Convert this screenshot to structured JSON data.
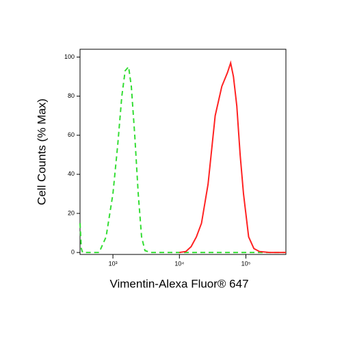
{
  "chart_data": {
    "type": "line",
    "x_label": "Vimentin-Alexa Fluor® 647",
    "y_label": "Cell Counts (% Max)",
    "x_scale": "log",
    "xlim": [
      320,
      400000
    ],
    "ylim": [
      -1,
      104
    ],
    "xticks": [
      {
        "value": 1000,
        "label": "10³"
      },
      {
        "value": 10000,
        "label": "10⁴"
      },
      {
        "value": 100000,
        "label": "10⁵"
      }
    ],
    "yticks": [
      0,
      20,
      40,
      60,
      80,
      100
    ],
    "series": [
      {
        "color": "#33dd33",
        "dashed": true,
        "x": [
          320,
          335,
          350,
          620,
          790,
          1000,
          1180,
          1360,
          1530,
          1720,
          1890,
          2130,
          2400,
          2700,
          3030,
          3660,
          10000,
          100000,
          400000
        ],
        "values": [
          15,
          2,
          0,
          0,
          8,
          30,
          55,
          80,
          93,
          95,
          85,
          60,
          30,
          8,
          1,
          0,
          0,
          0,
          0
        ]
      },
      {
        "color": "#ff2222",
        "dashed": false,
        "x": [
          10000,
          12500,
          15000,
          18000,
          21500,
          27000,
          34500,
          43500,
          52800,
          59000,
          65000,
          73000,
          82000,
          92000,
          110000,
          132000,
          160000,
          228000,
          400000
        ],
        "values": [
          0,
          0.5,
          3,
          8,
          15,
          35,
          70,
          85,
          92,
          97,
          90,
          75,
          50,
          30,
          8,
          2,
          0.5,
          0,
          0
        ]
      }
    ]
  }
}
